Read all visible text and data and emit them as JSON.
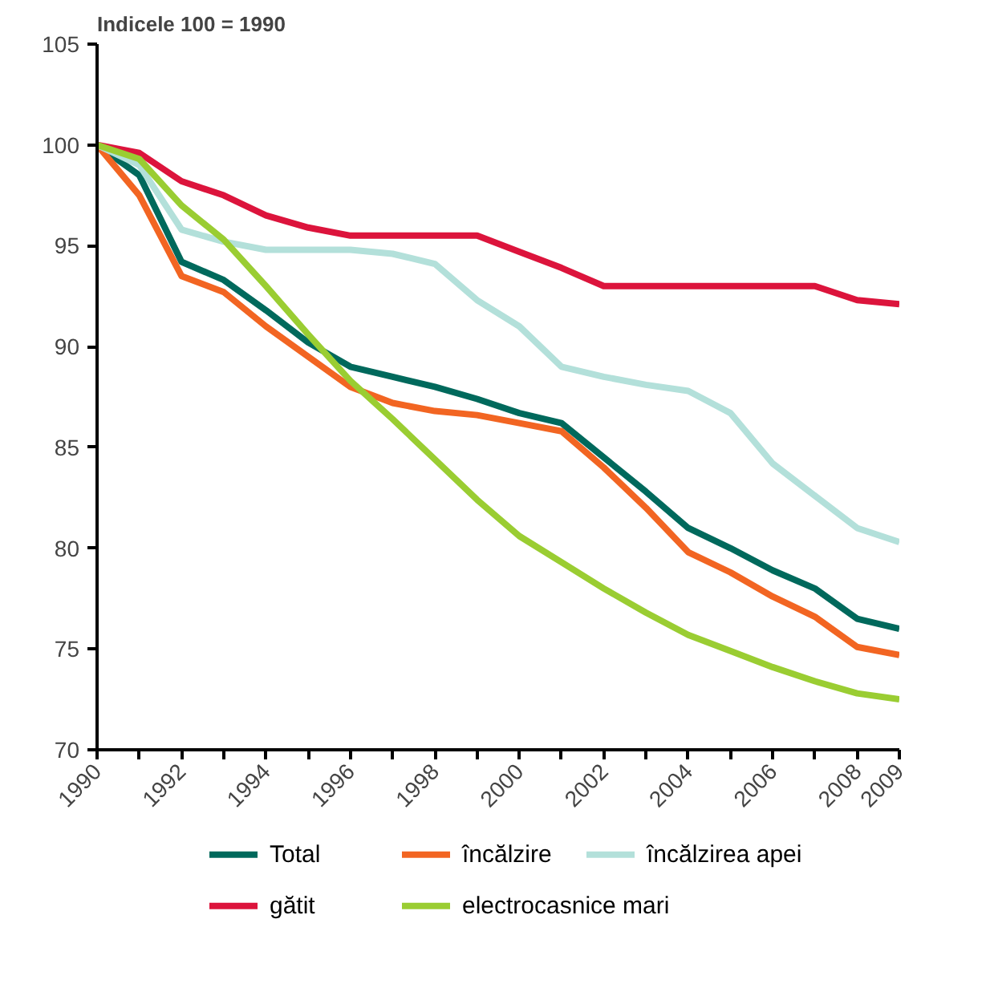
{
  "chart_data": {
    "type": "line",
    "title": "Indicele 100 = 1990",
    "x": [
      1990,
      1991,
      1992,
      1993,
      1994,
      1995,
      1996,
      1997,
      1998,
      1999,
      2000,
      2001,
      2002,
      2003,
      2004,
      2005,
      2006,
      2007,
      2008,
      2009
    ],
    "series": [
      {
        "name": "Total",
        "color": "#00695c",
        "values": [
          100,
          98.5,
          94.2,
          93.3,
          91.8,
          90.2,
          89,
          88.5,
          88,
          87.4,
          86.7,
          86.2,
          84.5,
          82.8,
          81,
          80,
          78.9,
          78,
          76.5,
          76
        ]
      },
      {
        "name": "încălzire",
        "color": "#f26522",
        "values": [
          100,
          97.5,
          93.5,
          92.7,
          91,
          89.5,
          88,
          87.2,
          86.8,
          86.6,
          86.2,
          85.8,
          84,
          82,
          79.8,
          78.8,
          77.6,
          76.6,
          75.1,
          74.7
        ]
      },
      {
        "name": "încălzirea apei",
        "color": "#b3e0da",
        "values": [
          100,
          99,
          95.8,
          95.2,
          94.8,
          94.8,
          94.8,
          94.6,
          94.1,
          92.3,
          91,
          89,
          88.5,
          88.1,
          87.8,
          86.7,
          84.2,
          82.6,
          81,
          80.3
        ]
      },
      {
        "name": "gătit",
        "color": "#dc143c",
        "values": [
          100,
          99.6,
          98.2,
          97.5,
          96.5,
          95.9,
          95.5,
          95.5,
          95.5,
          95.5,
          94.7,
          93.9,
          93,
          93,
          93,
          93,
          93,
          93,
          92.3,
          92.1
        ]
      },
      {
        "name": "electrocasnice mari",
        "color": "#9acd32",
        "values": [
          100,
          99.3,
          97,
          95.3,
          93,
          90.6,
          88.3,
          86.4,
          84.4,
          82.4,
          80.6,
          79.3,
          78,
          76.8,
          75.7,
          74.9,
          74.1,
          73.4,
          72.8,
          72.5
        ]
      }
    ],
    "xlim": [
      1990,
      2009
    ],
    "xticks": [
      1990,
      {
        "value": 1991,
        "label": null
      },
      1992,
      {
        "value": 1993,
        "label": null
      },
      1994,
      {
        "value": 1995,
        "label": null
      },
      1996,
      {
        "value": 1997,
        "label": null
      },
      1998,
      {
        "value": 1999,
        "label": null
      },
      2000,
      {
        "value": 2001,
        "label": null
      },
      2002,
      {
        "value": 2003,
        "label": null
      },
      2004,
      {
        "value": 2005,
        "label": null
      },
      2006,
      {
        "value": 2007,
        "label": null
      },
      2008,
      2009
    ],
    "ylim": [
      70,
      105
    ],
    "yticks": [
      70,
      75,
      80,
      85,
      90,
      95,
      100,
      105
    ],
    "grid": false,
    "legend": "bottom",
    "marker": "none",
    "line_style": "solid"
  }
}
